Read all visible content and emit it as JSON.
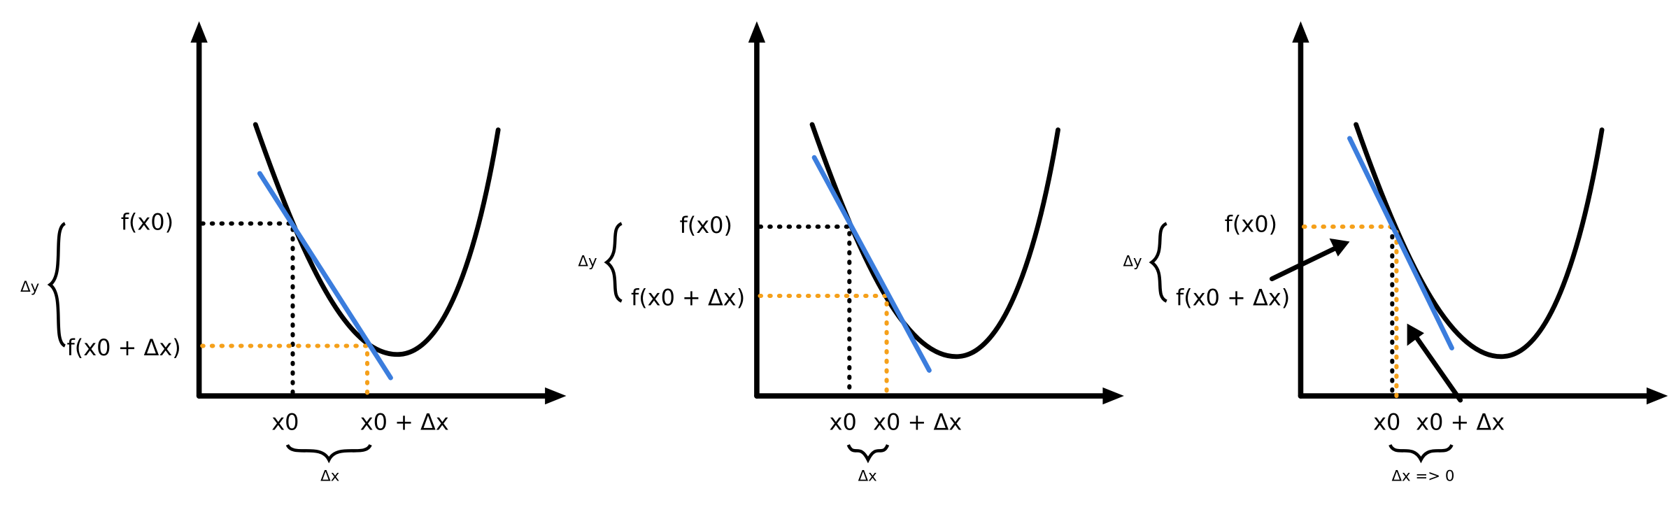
{
  "panels": [
    {
      "f_x0": "f(x0)",
      "f_x0_dx": "f(x0 + Δx)",
      "x0": "x0",
      "x0_dx": "x0 + Δx",
      "dx": "Δx",
      "dy": "Δy"
    },
    {
      "f_x0": "f(x0)",
      "f_x0_dx": "f(x0 + Δx)",
      "x0": "x0",
      "x0_dx": "x0 + Δx",
      "dx": "Δx",
      "dy": "Δy"
    },
    {
      "f_x0": "f(x0)",
      "f_x0_dx": "f(x0 + Δx)",
      "x0": "x0",
      "x0_dx": "x0 + Δx",
      "dx": "Δx => 0",
      "dy": "Δy"
    }
  ]
}
